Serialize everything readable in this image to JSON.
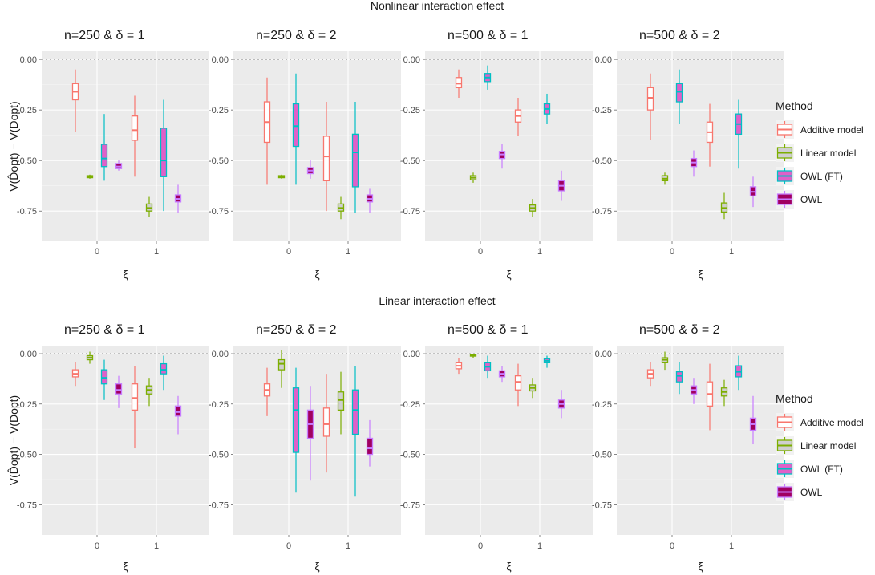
{
  "legend": {
    "title": "Method",
    "items": [
      {
        "label": "Additive model",
        "color": "#F8766D",
        "fill": "#ffffff"
      },
      {
        "label": "Linear model",
        "color": "#7CAE00",
        "fill": "#cfcfcf"
      },
      {
        "label": "OWL (FT)",
        "color": "#00BFC4",
        "fill": "#e060c8"
      },
      {
        "label": "OWL",
        "color": "#C77CFF",
        "fill": "#a00060"
      }
    ]
  },
  "chart_data": {
    "type": "boxplot",
    "y_axis": {
      "label": "V(D̂opt) − V(Dopt)",
      "ticks": [
        0.0,
        -0.25,
        -0.5,
        -0.75
      ],
      "tick_labels": [
        "0.00",
        "-0.25",
        "-0.50",
        "-0.75"
      ],
      "ylim": [
        -0.9,
        0.04
      ],
      "reference_line": 0.0
    },
    "x_axis": {
      "label": "ξ",
      "categories": [
        "0",
        "1"
      ]
    },
    "sections": [
      {
        "title": "Nonlinear interaction effect",
        "panels": [
          {
            "title": "n=250 & δ = 1",
            "boxes": [
              {
                "x": "0",
                "method": "Additive model",
                "min": -0.36,
                "q1": -0.2,
                "median": -0.16,
                "q3": -0.12,
                "max": -0.05
              },
              {
                "x": "0",
                "method": "Linear model",
                "min": -0.59,
                "q1": -0.585,
                "median": -0.58,
                "q3": -0.575,
                "max": -0.57
              },
              {
                "x": "0",
                "method": "OWL (FT)",
                "min": -0.6,
                "q1": -0.53,
                "median": -0.49,
                "q3": -0.42,
                "max": -0.27
              },
              {
                "x": "0",
                "method": "OWL",
                "min": -0.55,
                "q1": -0.54,
                "median": -0.53,
                "q3": -0.515,
                "max": -0.5
              },
              {
                "x": "1",
                "method": "Additive model",
                "min": -0.58,
                "q1": -0.4,
                "median": -0.35,
                "q3": -0.28,
                "max": -0.18
              },
              {
                "x": "1",
                "method": "Linear model",
                "min": -0.78,
                "q1": -0.75,
                "median": -0.735,
                "q3": -0.715,
                "max": -0.68
              },
              {
                "x": "1",
                "method": "OWL (FT)",
                "min": -0.75,
                "q1": -0.58,
                "median": -0.5,
                "q3": -0.34,
                "max": -0.2
              },
              {
                "x": "1",
                "method": "OWL",
                "min": -0.76,
                "q1": -0.705,
                "median": -0.69,
                "q3": -0.67,
                "max": -0.62
              }
            ]
          },
          {
            "title": "n=250 & δ = 2",
            "boxes": [
              {
                "x": "0",
                "method": "Additive model",
                "min": -0.62,
                "q1": -0.41,
                "median": -0.31,
                "q3": -0.21,
                "max": -0.09
              },
              {
                "x": "0",
                "method": "Linear model",
                "min": -0.59,
                "q1": -0.585,
                "median": -0.58,
                "q3": -0.575,
                "max": -0.57
              },
              {
                "x": "0",
                "method": "OWL (FT)",
                "min": -0.62,
                "q1": -0.43,
                "median": -0.33,
                "q3": -0.22,
                "max": -0.07
              },
              {
                "x": "0",
                "method": "OWL",
                "min": -0.59,
                "q1": -0.565,
                "median": -0.55,
                "q3": -0.535,
                "max": -0.5
              },
              {
                "x": "1",
                "method": "Additive model",
                "min": -0.75,
                "q1": -0.6,
                "median": -0.48,
                "q3": -0.38,
                "max": -0.21
              },
              {
                "x": "1",
                "method": "Linear model",
                "min": -0.79,
                "q1": -0.75,
                "median": -0.735,
                "q3": -0.715,
                "max": -0.68
              },
              {
                "x": "1",
                "method": "OWL (FT)",
                "min": -0.76,
                "q1": -0.63,
                "median": -0.46,
                "q3": -0.37,
                "max": -0.21
              },
              {
                "x": "1",
                "method": "OWL",
                "min": -0.76,
                "q1": -0.705,
                "median": -0.69,
                "q3": -0.67,
                "max": -0.64
              }
            ]
          },
          {
            "title": "n=500 & δ = 1",
            "boxes": [
              {
                "x": "0",
                "method": "Additive model",
                "min": -0.19,
                "q1": -0.14,
                "median": -0.12,
                "q3": -0.09,
                "max": -0.05
              },
              {
                "x": "0",
                "method": "Linear model",
                "min": -0.61,
                "q1": -0.595,
                "median": -0.585,
                "q3": -0.575,
                "max": -0.56
              },
              {
                "x": "0",
                "method": "OWL (FT)",
                "min": -0.15,
                "q1": -0.11,
                "median": -0.09,
                "q3": -0.07,
                "max": -0.03
              },
              {
                "x": "0",
                "method": "OWL",
                "min": -0.54,
                "q1": -0.49,
                "median": -0.47,
                "q3": -0.455,
                "max": -0.42
              },
              {
                "x": "1",
                "method": "Additive model",
                "min": -0.38,
                "q1": -0.31,
                "median": -0.28,
                "q3": -0.25,
                "max": -0.19
              },
              {
                "x": "1",
                "method": "Linear model",
                "min": -0.78,
                "q1": -0.75,
                "median": -0.735,
                "q3": -0.72,
                "max": -0.69
              },
              {
                "x": "1",
                "method": "OWL (FT)",
                "min": -0.32,
                "q1": -0.27,
                "median": -0.245,
                "q3": -0.22,
                "max": -0.17
              },
              {
                "x": "1",
                "method": "OWL",
                "min": -0.7,
                "q1": -0.65,
                "median": -0.625,
                "q3": -0.6,
                "max": -0.55
              }
            ]
          },
          {
            "title": "n=500 & δ = 2",
            "boxes": [
              {
                "x": "0",
                "method": "Additive model",
                "min": -0.4,
                "q1": -0.25,
                "median": -0.19,
                "q3": -0.14,
                "max": -0.07
              },
              {
                "x": "0",
                "method": "Linear model",
                "min": -0.62,
                "q1": -0.6,
                "median": -0.59,
                "q3": -0.575,
                "max": -0.56
              },
              {
                "x": "0",
                "method": "OWL (FT)",
                "min": -0.32,
                "q1": -0.21,
                "median": -0.16,
                "q3": -0.12,
                "max": -0.05
              },
              {
                "x": "0",
                "method": "OWL",
                "min": -0.58,
                "q1": -0.53,
                "median": -0.51,
                "q3": -0.49,
                "max": -0.45
              },
              {
                "x": "1",
                "method": "Additive model",
                "min": -0.53,
                "q1": -0.41,
                "median": -0.36,
                "q3": -0.31,
                "max": -0.22
              },
              {
                "x": "1",
                "method": "Linear model",
                "min": -0.79,
                "q1": -0.755,
                "median": -0.735,
                "q3": -0.71,
                "max": -0.66
              },
              {
                "x": "1",
                "method": "OWL (FT)",
                "min": -0.54,
                "q1": -0.37,
                "median": -0.32,
                "q3": -0.27,
                "max": -0.2
              },
              {
                "x": "1",
                "method": "OWL",
                "min": -0.73,
                "q1": -0.675,
                "median": -0.655,
                "q3": -0.63,
                "max": -0.58
              }
            ]
          }
        ]
      },
      {
        "title": "Linear interaction effect",
        "panels": [
          {
            "title": "n=250 & δ = 1",
            "boxes": [
              {
                "x": "0",
                "method": "Additive model",
                "min": -0.16,
                "q1": -0.115,
                "median": -0.1,
                "q3": -0.08,
                "max": -0.04
              },
              {
                "x": "0",
                "method": "Linear model",
                "min": -0.05,
                "q1": -0.03,
                "median": -0.02,
                "q3": -0.01,
                "max": 0.01
              },
              {
                "x": "0",
                "method": "OWL (FT)",
                "min": -0.23,
                "q1": -0.15,
                "median": -0.12,
                "q3": -0.08,
                "max": -0.03
              },
              {
                "x": "0",
                "method": "OWL",
                "min": -0.27,
                "q1": -0.2,
                "median": -0.18,
                "q3": -0.15,
                "max": -0.11
              },
              {
                "x": "1",
                "method": "Additive model",
                "min": -0.47,
                "q1": -0.28,
                "median": -0.22,
                "q3": -0.15,
                "max": -0.06
              },
              {
                "x": "1",
                "method": "Linear model",
                "min": -0.26,
                "q1": -0.2,
                "median": -0.18,
                "q3": -0.16,
                "max": -0.12
              },
              {
                "x": "1",
                "method": "OWL (FT)",
                "min": -0.18,
                "q1": -0.1,
                "median": -0.08,
                "q3": -0.05,
                "max": -0.01
              },
              {
                "x": "1",
                "method": "OWL",
                "min": -0.4,
                "q1": -0.31,
                "median": -0.29,
                "q3": -0.26,
                "max": -0.21
              }
            ]
          },
          {
            "title": "n=250 & δ = 2",
            "boxes": [
              {
                "x": "0",
                "method": "Additive model",
                "min": -0.31,
                "q1": -0.21,
                "median": -0.18,
                "q3": -0.15,
                "max": -0.07
              },
              {
                "x": "0",
                "method": "Linear model",
                "min": -0.17,
                "q1": -0.08,
                "median": -0.05,
                "q3": -0.03,
                "max": 0.02
              },
              {
                "x": "0",
                "method": "OWL (FT)",
                "min": -0.69,
                "q1": -0.49,
                "median": -0.28,
                "q3": -0.17,
                "max": -0.07
              },
              {
                "x": "0",
                "method": "OWL",
                "min": -0.63,
                "q1": -0.42,
                "median": -0.35,
                "q3": -0.28,
                "max": -0.16
              },
              {
                "x": "1",
                "method": "Additive model",
                "min": -0.59,
                "q1": -0.41,
                "median": -0.35,
                "q3": -0.27,
                "max": -0.1
              },
              {
                "x": "1",
                "method": "Linear model",
                "min": -0.4,
                "q1": -0.28,
                "median": -0.23,
                "q3": -0.19,
                "max": -0.09
              },
              {
                "x": "1",
                "method": "OWL (FT)",
                "min": -0.71,
                "q1": -0.4,
                "median": -0.28,
                "q3": -0.18,
                "max": -0.06
              },
              {
                "x": "1",
                "method": "OWL",
                "min": -0.56,
                "q1": -0.5,
                "median": -0.47,
                "q3": -0.42,
                "max": -0.33
              }
            ]
          },
          {
            "title": "n=500 & δ = 1",
            "boxes": [
              {
                "x": "0",
                "method": "Additive model",
                "min": -0.1,
                "q1": -0.075,
                "median": -0.06,
                "q3": -0.045,
                "max": -0.02
              },
              {
                "x": "0",
                "method": "Linear model",
                "min": -0.02,
                "q1": -0.012,
                "median": -0.008,
                "q3": -0.004,
                "max": 0.0
              },
              {
                "x": "0",
                "method": "OWL (FT)",
                "min": -0.12,
                "q1": -0.085,
                "median": -0.065,
                "q3": -0.045,
                "max": -0.01
              },
              {
                "x": "0",
                "method": "OWL",
                "min": -0.14,
                "q1": -0.115,
                "median": -0.1,
                "q3": -0.085,
                "max": -0.06
              },
              {
                "x": "1",
                "method": "Additive model",
                "min": -0.26,
                "q1": -0.18,
                "median": -0.14,
                "q3": -0.11,
                "max": -0.05
              },
              {
                "x": "1",
                "method": "Linear model",
                "min": -0.22,
                "q1": -0.185,
                "median": -0.17,
                "q3": -0.155,
                "max": -0.12
              },
              {
                "x": "1",
                "method": "OWL (FT)",
                "min": -0.07,
                "q1": -0.045,
                "median": -0.035,
                "q3": -0.025,
                "max": -0.01
              },
              {
                "x": "1",
                "method": "OWL",
                "min": -0.32,
                "q1": -0.27,
                "median": -0.25,
                "q3": -0.23,
                "max": -0.18
              }
            ]
          },
          {
            "title": "n=500 & δ = 2",
            "boxes": [
              {
                "x": "0",
                "method": "Additive model",
                "min": -0.16,
                "q1": -0.12,
                "median": -0.1,
                "q3": -0.08,
                "max": -0.04
              },
              {
                "x": "0",
                "method": "Linear model",
                "min": -0.08,
                "q1": -0.045,
                "median": -0.03,
                "q3": -0.02,
                "max": 0.01
              },
              {
                "x": "0",
                "method": "OWL (FT)",
                "min": -0.2,
                "q1": -0.14,
                "median": -0.11,
                "q3": -0.09,
                "max": -0.04
              },
              {
                "x": "0",
                "method": "OWL",
                "min": -0.25,
                "q1": -0.2,
                "median": -0.18,
                "q3": -0.16,
                "max": -0.12
              },
              {
                "x": "1",
                "method": "Additive model",
                "min": -0.38,
                "q1": -0.26,
                "median": -0.2,
                "q3": -0.14,
                "max": -0.05
              },
              {
                "x": "1",
                "method": "Linear model",
                "min": -0.26,
                "q1": -0.21,
                "median": -0.19,
                "q3": -0.17,
                "max": -0.13
              },
              {
                "x": "1",
                "method": "OWL (FT)",
                "min": -0.18,
                "q1": -0.115,
                "median": -0.09,
                "q3": -0.06,
                "max": -0.01
              },
              {
                "x": "1",
                "method": "OWL",
                "min": -0.45,
                "q1": -0.38,
                "median": -0.35,
                "q3": -0.32,
                "max": -0.21
              }
            ]
          }
        ]
      }
    ]
  }
}
